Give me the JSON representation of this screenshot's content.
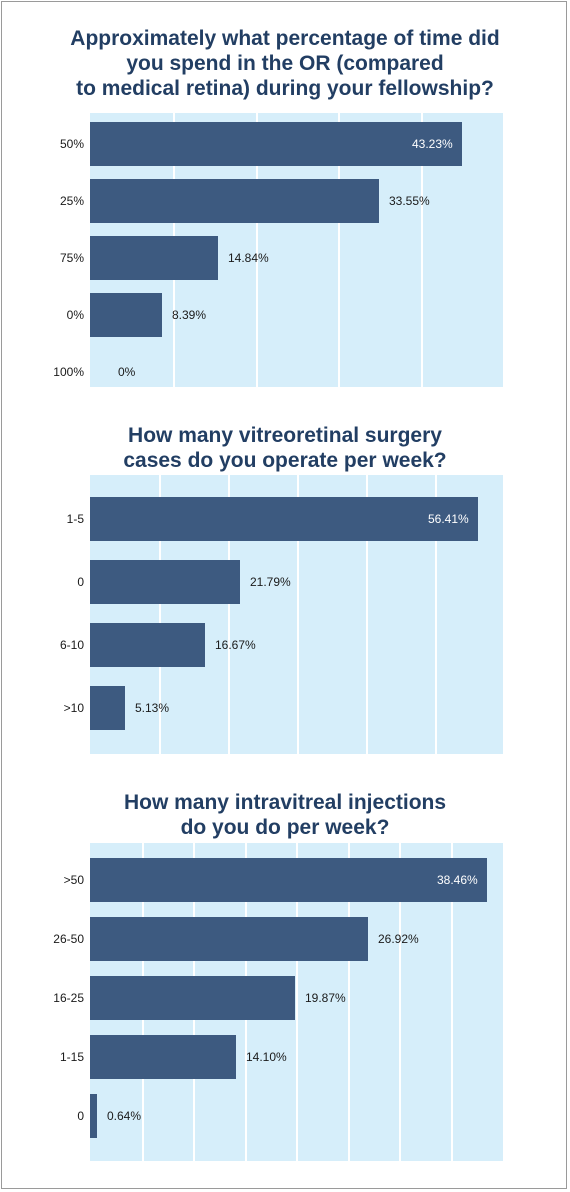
{
  "chart_data": [
    {
      "type": "bar",
      "orientation": "horizontal",
      "title": "Approximately what percentage of time did you spend in the OR (compared to medical retina) during your fellowship?",
      "title_lines": [
        "Approximately what percentage of time did",
        "you spend in the OR (compared",
        "to medical retina) during your fellowship?"
      ],
      "categories": [
        "50%",
        "25%",
        "75%",
        "0%",
        "100%"
      ],
      "values": [
        43.23,
        33.55,
        14.84,
        8.39,
        0
      ],
      "labels": [
        "43.23%",
        "33.55%",
        "14.84%",
        "8.39%",
        "0%"
      ],
      "xlim": [
        0,
        48
      ],
      "grid": true
    },
    {
      "type": "bar",
      "orientation": "horizontal",
      "title": "How many vitreoretinal surgery cases do you operate per week?",
      "title_lines": [
        "How many vitreoretinal surgery",
        "cases do you operate per week?"
      ],
      "categories": [
        "1-5",
        "0",
        "6-10",
        ">10"
      ],
      "values": [
        56.41,
        21.79,
        16.67,
        5.13
      ],
      "labels": [
        "56.41%",
        "21.79%",
        "16.67%",
        "5.13%"
      ],
      "xlim": [
        0,
        60
      ],
      "grid": true
    },
    {
      "type": "bar",
      "orientation": "horizontal",
      "title": "How many intravitreal injections do you do per week?",
      "title_lines": [
        "How many intravitreal injections",
        "do you do per week?"
      ],
      "categories": [
        ">50",
        "26-50",
        "16-25",
        "1-15",
        "0"
      ],
      "values": [
        38.46,
        26.92,
        19.87,
        14.1,
        0.64
      ],
      "labels": [
        "38.46%",
        "26.92%",
        "19.87%",
        "14.10%",
        "0.64%"
      ],
      "xlim": [
        0,
        40
      ],
      "grid": true
    }
  ],
  "colors": {
    "bar": "#3d5a80",
    "plot_background": "#d6eefa",
    "title": "#223e63"
  }
}
